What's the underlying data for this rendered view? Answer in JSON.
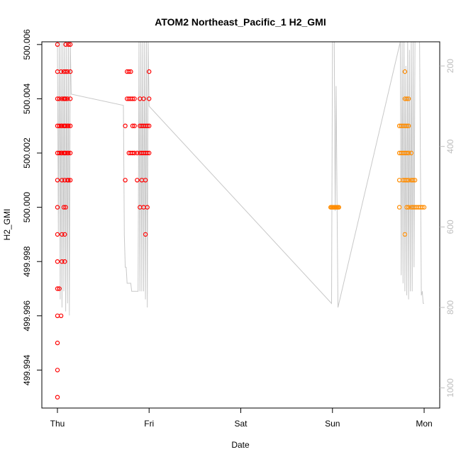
{
  "chart_data": {
    "type": "scatter",
    "title": "ATOM2 Northeast_Pacific_1 H2_GMI",
    "xlabel": "Date",
    "ylabel": "H2_GMI",
    "x_ticks": [
      "Thu",
      "Fri",
      "Sat",
      "Sun",
      "Mon"
    ],
    "xlim_days": [
      -0.17,
      4.17
    ],
    "ylim": [
      499.9926,
      500.0061
    ],
    "y_ticks": [
      499.994,
      499.996,
      499.998,
      500.0,
      500.002,
      500.004,
      500.006
    ],
    "y_tick_labels": [
      "499.994",
      "499.996",
      "499.998",
      "500.000",
      "500.002",
      "500.004",
      "500.006"
    ],
    "y2_ticks": [
      200,
      400,
      600,
      800,
      1000
    ],
    "y2_tick_labels": [
      "200",
      "400",
      "600",
      "800",
      "1000"
    ],
    "y2lim": [
      1050,
      140
    ],
    "grid": false,
    "colors": {
      "series_red": "#ff0000",
      "series_orange": "#ff8c00",
      "line_gray": "#c8c8c8",
      "axis": "#000000",
      "axis2": "#bdbdbd"
    },
    "series": [
      {
        "color": "#ff0000",
        "points": [
          [
            0.0,
            500.006
          ],
          [
            0.0,
            500.005
          ],
          [
            0.0,
            500.004
          ],
          [
            0.0,
            500.003
          ],
          [
            0.0,
            500.002
          ],
          [
            0.0,
            500.001
          ],
          [
            0.0,
            500.0
          ],
          [
            0.0,
            499.999
          ],
          [
            0.0,
            499.998
          ],
          [
            0.0,
            499.997
          ],
          [
            0.0,
            499.996
          ],
          [
            0.0,
            499.995
          ],
          [
            0.0,
            499.994
          ],
          [
            0.0,
            499.993
          ],
          [
            0.02,
            500.004
          ],
          [
            0.02,
            500.003
          ],
          [
            0.02,
            500.002
          ],
          [
            0.02,
            499.997
          ],
          [
            0.04,
            500.005
          ],
          [
            0.04,
            500.003
          ],
          [
            0.04,
            500.002
          ],
          [
            0.04,
            499.996
          ],
          [
            0.05,
            500.004
          ],
          [
            0.05,
            500.003
          ],
          [
            0.05,
            500.002
          ],
          [
            0.05,
            500.001
          ],
          [
            0.05,
            499.999
          ],
          [
            0.05,
            499.998
          ],
          [
            0.07,
            500.005
          ],
          [
            0.07,
            500.004
          ],
          [
            0.07,
            500.003
          ],
          [
            0.07,
            500.002
          ],
          [
            0.07,
            500.0
          ],
          [
            0.08,
            500.004
          ],
          [
            0.08,
            500.003
          ],
          [
            0.08,
            500.002
          ],
          [
            0.08,
            500.001
          ],
          [
            0.08,
            499.999
          ],
          [
            0.08,
            499.998
          ],
          [
            0.09,
            500.006
          ],
          [
            0.09,
            500.005
          ],
          [
            0.09,
            500.004
          ],
          [
            0.09,
            500.003
          ],
          [
            0.09,
            500.002
          ],
          [
            0.09,
            500.0
          ],
          [
            0.11,
            500.005
          ],
          [
            0.11,
            500.004
          ],
          [
            0.11,
            500.003
          ],
          [
            0.11,
            500.002
          ],
          [
            0.11,
            500.001
          ],
          [
            0.12,
            500.006
          ],
          [
            0.12,
            500.003
          ],
          [
            0.12,
            500.002
          ],
          [
            0.12,
            500.001
          ],
          [
            0.14,
            500.006
          ],
          [
            0.14,
            500.005
          ],
          [
            0.14,
            500.004
          ],
          [
            0.14,
            500.003
          ],
          [
            0.14,
            500.002
          ],
          [
            0.14,
            500.001
          ],
          [
            0.74,
            500.003
          ],
          [
            0.74,
            500.001
          ],
          [
            0.76,
            500.005
          ],
          [
            0.76,
            500.004
          ],
          [
            0.78,
            500.005
          ],
          [
            0.78,
            500.004
          ],
          [
            0.78,
            500.002
          ],
          [
            0.8,
            500.005
          ],
          [
            0.8,
            500.004
          ],
          [
            0.8,
            500.002
          ],
          [
            0.82,
            500.004
          ],
          [
            0.82,
            500.003
          ],
          [
            0.82,
            500.002
          ],
          [
            0.84,
            500.004
          ],
          [
            0.84,
            500.003
          ],
          [
            0.84,
            500.002
          ],
          [
            0.87,
            500.002
          ],
          [
            0.87,
            500.001
          ],
          [
            0.9,
            500.004
          ],
          [
            0.9,
            500.003
          ],
          [
            0.9,
            500.002
          ],
          [
            0.9,
            500.0
          ],
          [
            0.92,
            500.003
          ],
          [
            0.92,
            500.002
          ],
          [
            0.92,
            500.001
          ],
          [
            0.94,
            500.004
          ],
          [
            0.94,
            500.003
          ],
          [
            0.94,
            500.002
          ],
          [
            0.94,
            500.0
          ],
          [
            0.96,
            500.003
          ],
          [
            0.96,
            500.002
          ],
          [
            0.96,
            500.001
          ],
          [
            0.96,
            499.999
          ],
          [
            0.98,
            500.003
          ],
          [
            0.98,
            500.002
          ],
          [
            0.98,
            500.0
          ],
          [
            1.0,
            500.005
          ],
          [
            1.0,
            500.004
          ],
          [
            1.0,
            500.003
          ],
          [
            1.0,
            500.002
          ]
        ]
      },
      {
        "color": "#ff8c00",
        "points": [
          [
            2.98,
            500.0
          ],
          [
            2.99,
            500.0
          ],
          [
            3.0,
            500.0
          ],
          [
            3.01,
            500.0
          ],
          [
            3.02,
            500.0
          ],
          [
            3.03,
            500.0
          ],
          [
            3.04,
            500.0
          ],
          [
            3.05,
            500.0
          ],
          [
            3.06,
            500.0
          ],
          [
            3.07,
            500.0
          ],
          [
            3.73,
            500.003
          ],
          [
            3.73,
            500.002
          ],
          [
            3.73,
            500.001
          ],
          [
            3.73,
            500.0
          ],
          [
            3.75,
            500.003
          ],
          [
            3.75,
            500.002
          ],
          [
            3.77,
            500.003
          ],
          [
            3.77,
            500.002
          ],
          [
            3.77,
            500.001
          ],
          [
            3.79,
            500.005
          ],
          [
            3.79,
            500.004
          ],
          [
            3.79,
            500.003
          ],
          [
            3.79,
            500.002
          ],
          [
            3.79,
            500.001
          ],
          [
            3.79,
            499.999
          ],
          [
            3.81,
            500.004
          ],
          [
            3.81,
            500.003
          ],
          [
            3.81,
            500.002
          ],
          [
            3.81,
            500.001
          ],
          [
            3.81,
            500.0
          ],
          [
            3.83,
            500.004
          ],
          [
            3.83,
            500.003
          ],
          [
            3.83,
            500.002
          ],
          [
            3.83,
            500.001
          ],
          [
            3.83,
            500.0
          ],
          [
            3.86,
            500.002
          ],
          [
            3.86,
            500.001
          ],
          [
            3.86,
            500.0
          ],
          [
            3.88,
            500.001
          ],
          [
            3.88,
            500.0
          ],
          [
            3.9,
            500.001
          ],
          [
            3.9,
            500.0
          ],
          [
            3.92,
            500.0
          ],
          [
            3.94,
            500.0
          ],
          [
            3.96,
            500.0
          ],
          [
            3.98,
            500.0
          ],
          [
            4.0,
            500.0
          ]
        ]
      }
    ],
    "pressure_line": [
      [
        0.0,
        140
      ],
      [
        0.01,
        620
      ],
      [
        0.02,
        140
      ],
      [
        0.03,
        780
      ],
      [
        0.04,
        140
      ],
      [
        0.05,
        800
      ],
      [
        0.06,
        140
      ],
      [
        0.07,
        760
      ],
      [
        0.08,
        140
      ],
      [
        0.09,
        810
      ],
      [
        0.1,
        140
      ],
      [
        0.11,
        790
      ],
      [
        0.12,
        140
      ],
      [
        0.13,
        820
      ],
      [
        0.14,
        140
      ],
      [
        0.15,
        270
      ],
      [
        0.72,
        298
      ],
      [
        0.73,
        620
      ],
      [
        0.74,
        700
      ],
      [
        0.75,
        700
      ],
      [
        0.76,
        740
      ],
      [
        0.8,
        740
      ],
      [
        0.81,
        760
      ],
      [
        0.88,
        760
      ],
      [
        0.89,
        140
      ],
      [
        0.9,
        760
      ],
      [
        0.91,
        140
      ],
      [
        0.92,
        760
      ],
      [
        0.93,
        140
      ],
      [
        0.94,
        760
      ],
      [
        0.95,
        140
      ],
      [
        0.96,
        780
      ],
      [
        0.97,
        140
      ],
      [
        0.98,
        800
      ],
      [
        0.99,
        140
      ],
      [
        1.0,
        300
      ],
      [
        2.99,
        790
      ],
      [
        3.0,
        140
      ],
      [
        3.02,
        140
      ],
      [
        3.03,
        560
      ],
      [
        3.04,
        250
      ],
      [
        3.05,
        530
      ],
      [
        3.06,
        800
      ],
      [
        3.74,
        140
      ],
      [
        3.75,
        720
      ],
      [
        3.76,
        140
      ],
      [
        3.77,
        740
      ],
      [
        3.78,
        140
      ],
      [
        3.79,
        760
      ],
      [
        3.8,
        200
      ],
      [
        3.81,
        770
      ],
      [
        3.82,
        140
      ],
      [
        3.83,
        780
      ],
      [
        3.84,
        160
      ],
      [
        3.85,
        760
      ],
      [
        3.86,
        140
      ],
      [
        3.87,
        760
      ],
      [
        3.88,
        140
      ],
      [
        3.89,
        700
      ],
      [
        3.9,
        140
      ],
      [
        3.95,
        140
      ],
      [
        3.97,
        770
      ],
      [
        3.98,
        760
      ],
      [
        3.99,
        790
      ],
      [
        4.0,
        790
      ]
    ]
  }
}
